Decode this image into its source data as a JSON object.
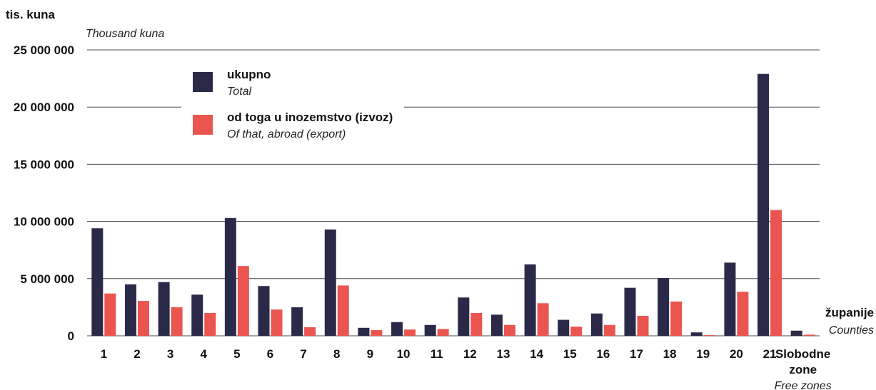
{
  "chart_data": {
    "type": "bar",
    "ylabel": "tis. kuna",
    "ylabel_en": "Thousand kuna",
    "xlabel": "županije",
    "xlabel_en": "Counties",
    "ylim": [
      0,
      25000000
    ],
    "yticks": [
      0,
      5000000,
      10000000,
      15000000,
      20000000,
      25000000
    ],
    "ytick_labels": [
      "0",
      "5 000 000",
      "10 000 000",
      "15 000 000",
      "20 000 000",
      "25 000 000"
    ],
    "grid": true,
    "legend_position": "top-left",
    "categories": [
      "1",
      "2",
      "3",
      "4",
      "5",
      "6",
      "7",
      "8",
      "9",
      "10",
      "11",
      "12",
      "13",
      "14",
      "15",
      "16",
      "17",
      "18",
      "19",
      "20",
      "21",
      "Slobodne zone"
    ],
    "category_labels": [
      [
        "1"
      ],
      [
        "2"
      ],
      [
        "3"
      ],
      [
        "4"
      ],
      [
        "5"
      ],
      [
        "6"
      ],
      [
        "7"
      ],
      [
        "8"
      ],
      [
        "9"
      ],
      [
        "10"
      ],
      [
        "11"
      ],
      [
        "12"
      ],
      [
        "13"
      ],
      [
        "14"
      ],
      [
        "15"
      ],
      [
        "16"
      ],
      [
        "17"
      ],
      [
        "18"
      ],
      [
        "19"
      ],
      [
        "20"
      ],
      [
        "21"
      ],
      [
        "Slobodne",
        "zone"
      ]
    ],
    "category_sub_label": "Free zones",
    "series": [
      {
        "name": "ukupno",
        "name_en": "Total",
        "color": "#2a2a48",
        "values": [
          9400000,
          4500000,
          4700000,
          3600000,
          10300000,
          4350000,
          2500000,
          9300000,
          700000,
          1200000,
          950000,
          3350000,
          1850000,
          6250000,
          1400000,
          1950000,
          4200000,
          5050000,
          300000,
          6400000,
          22900000,
          450000
        ]
      },
      {
        "name": "od toga u inozemstvo (izvoz)",
        "name_en": "Of that, abroad (export)",
        "color": "#ea5550",
        "values": [
          3700000,
          3050000,
          2500000,
          2000000,
          6100000,
          2300000,
          750000,
          4400000,
          500000,
          550000,
          600000,
          2000000,
          950000,
          2850000,
          800000,
          950000,
          1750000,
          3000000,
          60000,
          3850000,
          11000000,
          100000
        ]
      }
    ]
  }
}
